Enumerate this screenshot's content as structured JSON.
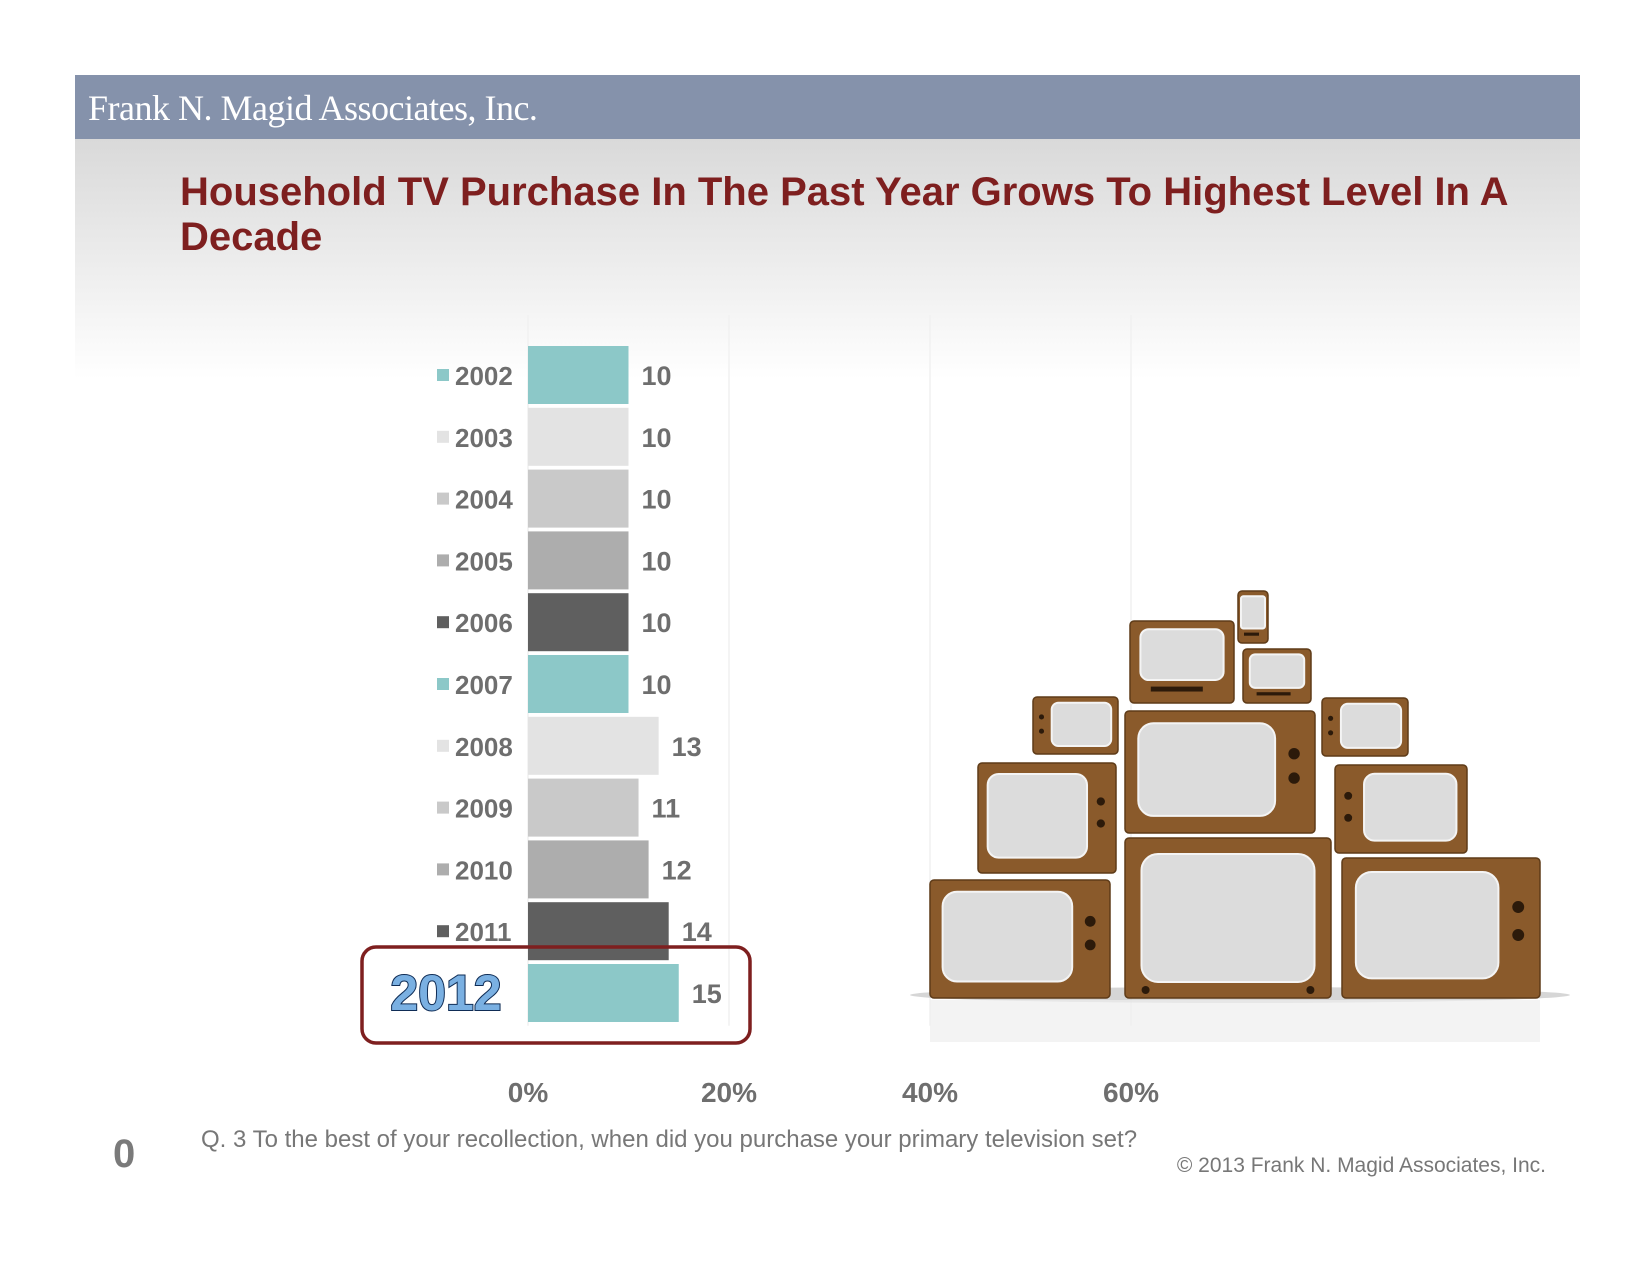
{
  "header": {
    "company": "Frank N. Magid Associates, Inc."
  },
  "slide_title": "Household TV Purchase In The Past Year Grows To Highest Level In A Decade",
  "chart_data": {
    "type": "bar",
    "orientation": "horizontal",
    "title": "",
    "xlabel": "",
    "ylabel": "",
    "categories": [
      "2002",
      "2003",
      "2004",
      "2005",
      "2006",
      "2007",
      "2008",
      "2009",
      "2010",
      "2011",
      "2012"
    ],
    "values": [
      10,
      10,
      10,
      10,
      10,
      10,
      13,
      11,
      12,
      14,
      15
    ],
    "value_labels": [
      "10",
      "10",
      "10",
      "10",
      "10",
      "10",
      "13",
      "11",
      "12",
      "14",
      "15"
    ],
    "colors": [
      "#8cc8c8",
      "#e3e3e3",
      "#c9c9c9",
      "#adadad",
      "#5f5f5f",
      "#8cc8c8",
      "#e3e3e3",
      "#c9c9c9",
      "#adadad",
      "#5f5f5f",
      "#8cc8c8"
    ],
    "x_ticks": [
      0,
      20,
      40,
      60
    ],
    "x_tick_labels": [
      "0%",
      "20%",
      "40%",
      "60%"
    ],
    "xlim": [
      0,
      60
    ],
    "grid": true,
    "legend": "inline-left",
    "highlight": {
      "category": "2012",
      "label": "2012",
      "outline_color": "#7e1f1f",
      "label_color": "#7ab0e2"
    }
  },
  "illustration": {
    "name": "stacked-vintage-televisions",
    "wood_color": "#8a5a2b",
    "screen_color": "#dcdcdc"
  },
  "footer": {
    "page_number": "0",
    "footnote": "Q. 3 To the best of your recollection, when did you purchase your primary television set?",
    "copyright": "© 2013 Frank N. Magid Associates, Inc."
  }
}
